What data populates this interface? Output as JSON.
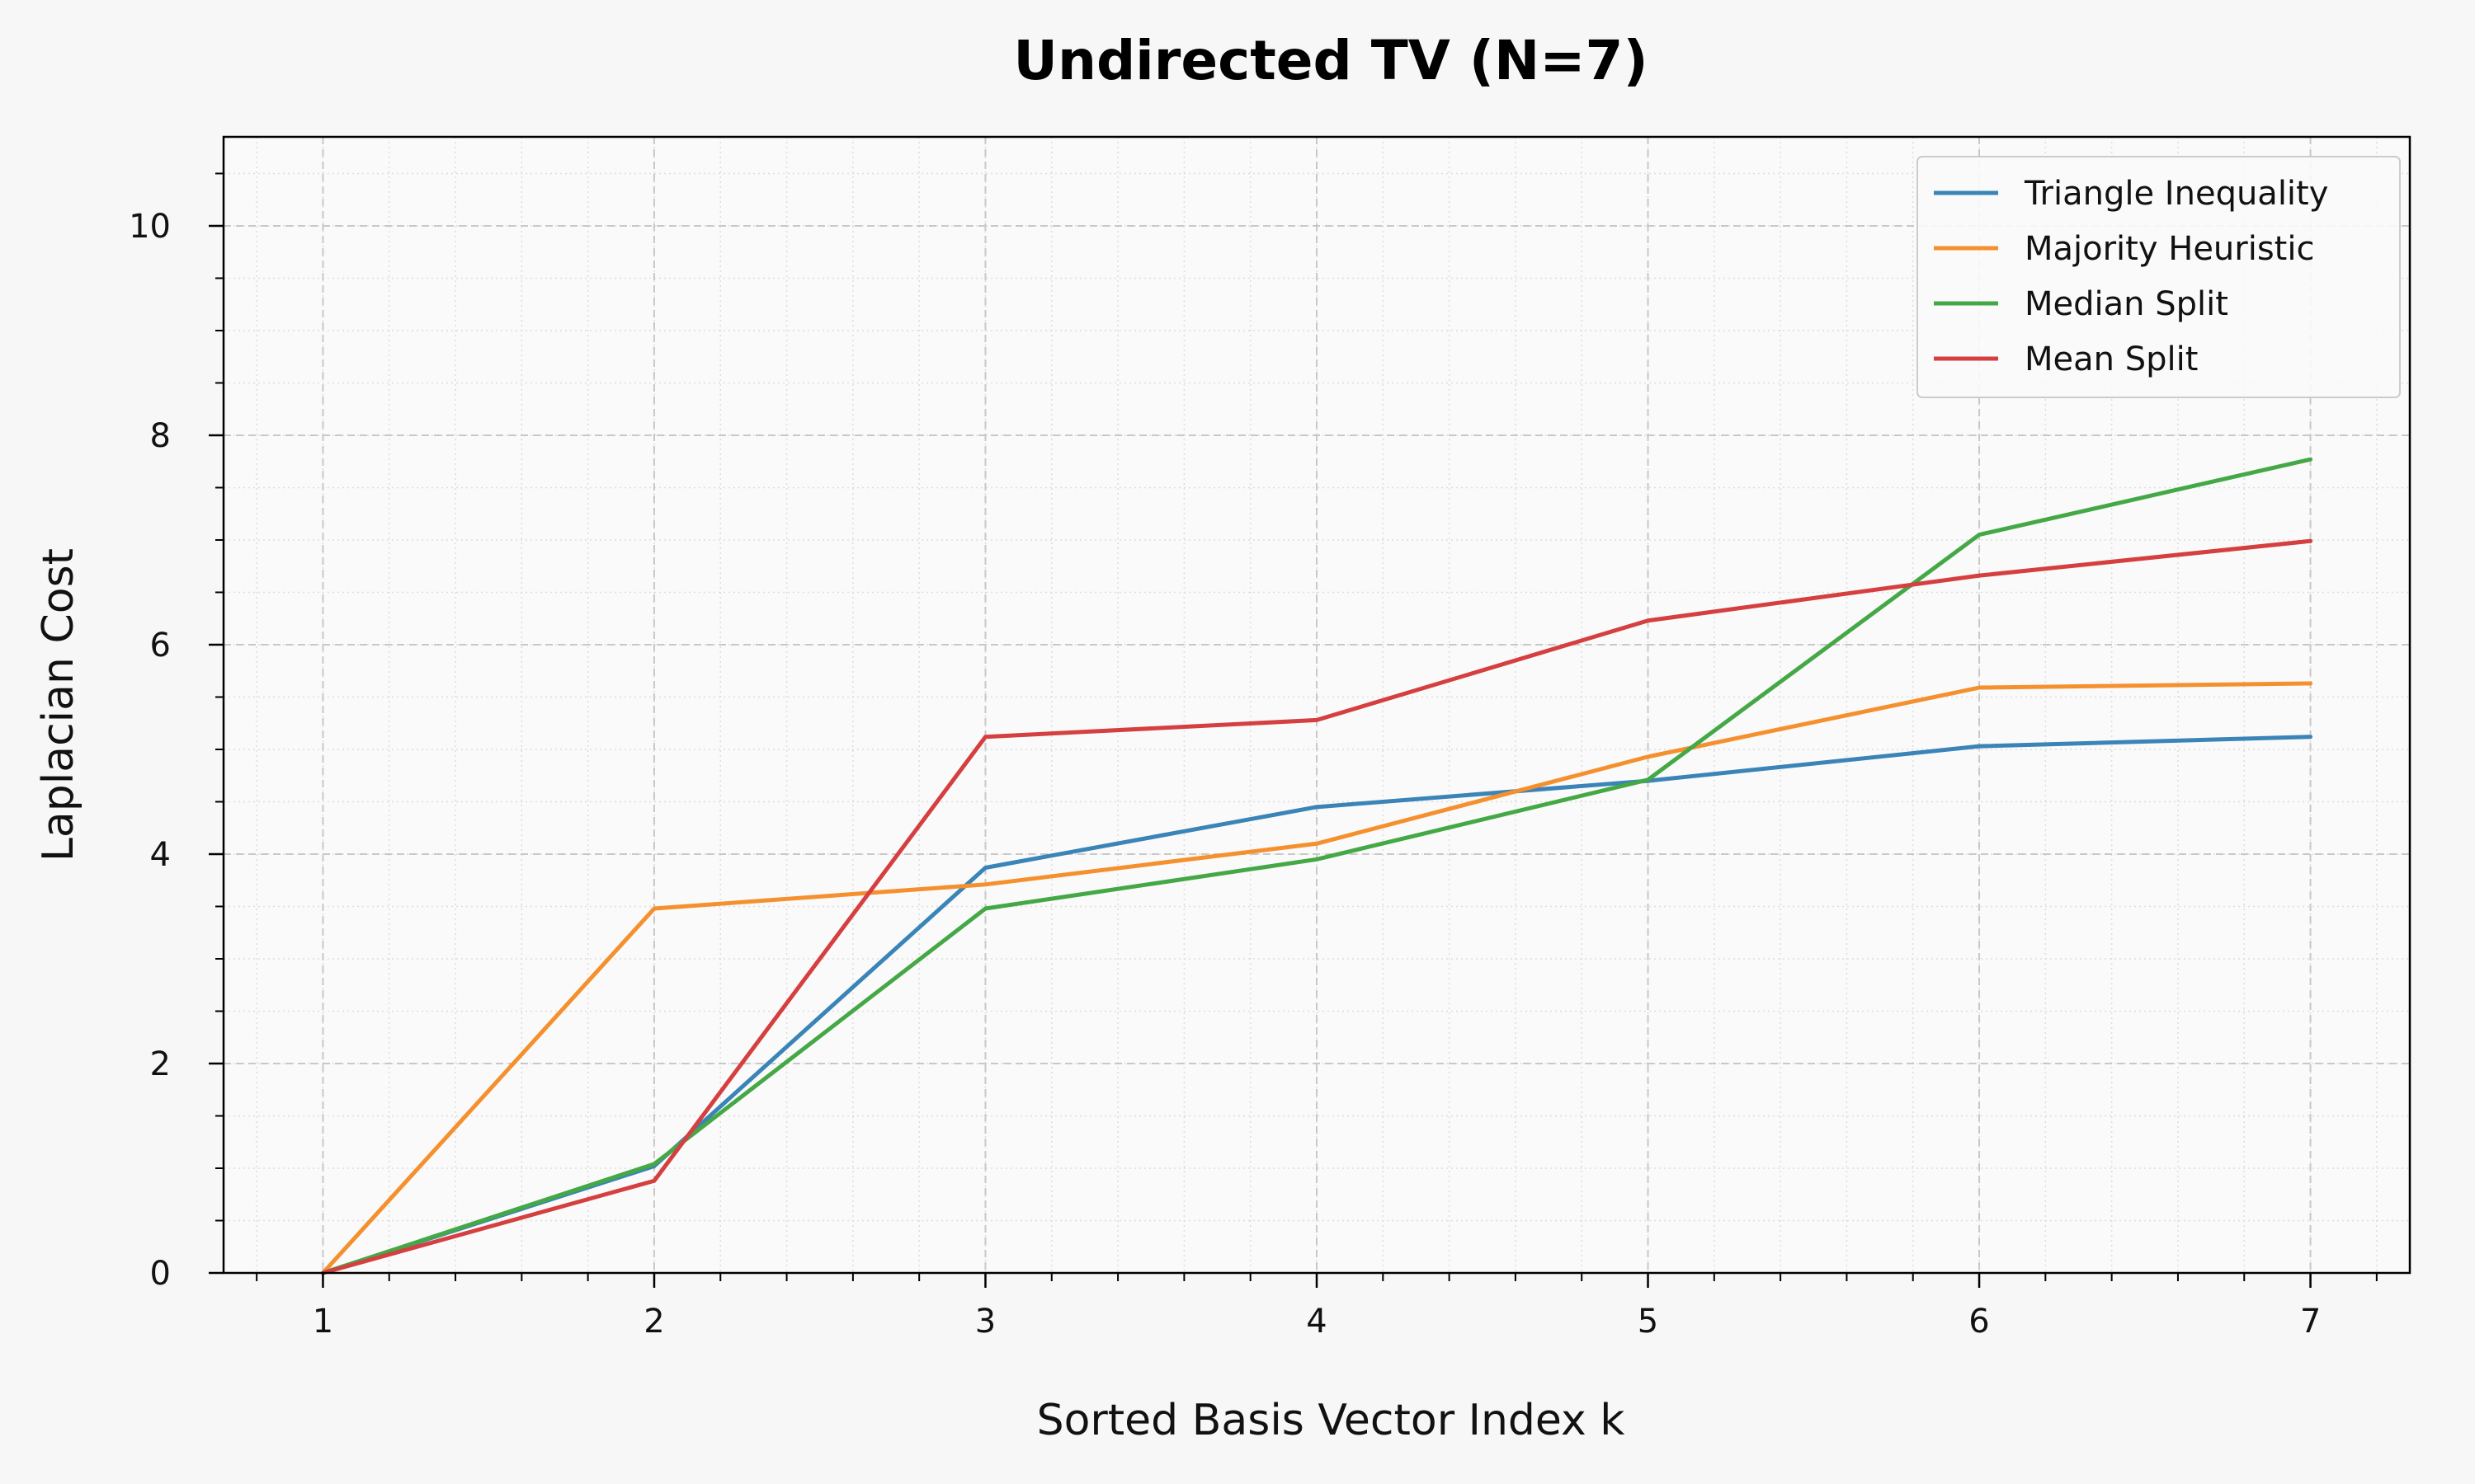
{
  "chart_data": {
    "type": "line",
    "title": "Undirected TV (N=7)",
    "xlabel": "Sorted Basis Vector Index k",
    "ylabel": "Laplacian Cost",
    "x": [
      1,
      2,
      3,
      4,
      5,
      6,
      7
    ],
    "xlim": [
      0.7,
      7.3
    ],
    "ylim": [
      0,
      10.85
    ],
    "xticks": [
      "1",
      "2",
      "3",
      "4",
      "5",
      "6",
      "7"
    ],
    "yticks": [
      "0",
      "2",
      "4",
      "6",
      "8",
      "10"
    ],
    "grid": true,
    "legend_position": "top-right",
    "series": [
      {
        "name": "Triangle Inequality",
        "color": "#3a84b8",
        "values": [
          0,
          1.02,
          3.87,
          4.45,
          4.7,
          5.03,
          5.12
        ]
      },
      {
        "name": "Majority Heuristic",
        "color": "#f5902e",
        "values": [
          0,
          3.48,
          3.71,
          4.1,
          4.93,
          5.59,
          5.63
        ]
      },
      {
        "name": "Median Split",
        "color": "#45a846",
        "values": [
          0,
          1.04,
          3.48,
          3.95,
          4.71,
          7.05,
          7.77
        ]
      },
      {
        "name": "Mean Split",
        "color": "#d53f3f",
        "values": [
          0,
          0.88,
          5.12,
          5.28,
          6.23,
          6.66,
          6.99
        ]
      }
    ]
  }
}
